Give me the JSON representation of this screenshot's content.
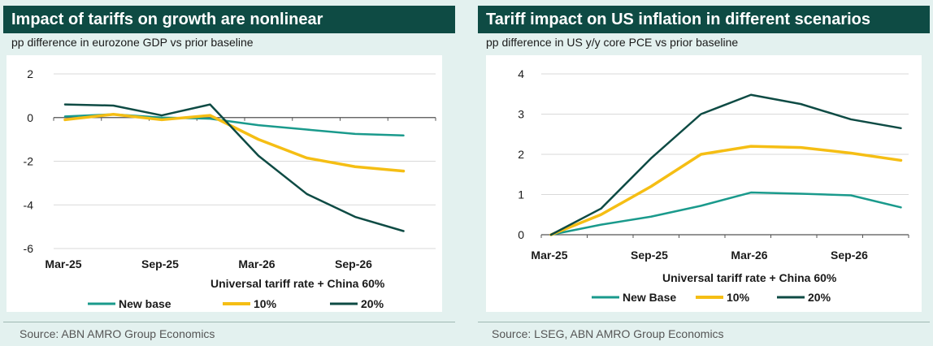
{
  "colors": {
    "header_bg": "#0e4b44",
    "page_bg": "#e3f1ef",
    "new_base": "#1a9a8c",
    "ten_pct": "#f5be14",
    "twenty_pct": "#0e4b44"
  },
  "left": {
    "title": "Impact of tariffs on growth are nonlinear",
    "subtitle": "pp difference in eurozone GDP vs prior baseline",
    "source": "Source: ABN AMRO Group Economics",
    "xlabel": "Universal tariff rate + China 60%",
    "legend": [
      "New base",
      "10%",
      "20%"
    ]
  },
  "right": {
    "title": "Tariff impact on US inflation in different scenarios",
    "subtitle": "pp difference in US y/y core PCE vs prior baseline",
    "source": "Source: LSEG, ABN AMRO Group Economics",
    "xlabel": "Universal tariff rate + China 60%",
    "legend": [
      "New Base",
      "10%",
      "20%"
    ]
  },
  "chart_data": [
    {
      "type": "line",
      "title": "Impact of tariffs on growth are nonlinear",
      "subtitle": "pp difference in eurozone GDP vs prior baseline",
      "xlabel": "Universal tariff rate + China 60%",
      "ylabel": "",
      "x": [
        "Mar-25",
        "Jun-25",
        "Sep-25",
        "Dec-25",
        "Mar-26",
        "Jun-26",
        "Sep-26",
        "Dec-26"
      ],
      "xticks": [
        "Mar-25",
        "Sep-25",
        "Mar-26",
        "Sep-26"
      ],
      "yticks": [
        2,
        0,
        -2,
        -4,
        -6
      ],
      "ylim": [
        -6,
        2
      ],
      "grid": "horizontal",
      "legend_position": "bottom",
      "series": [
        {
          "name": "New base",
          "color": "#1a9a8c",
          "values": [
            0.05,
            0.15,
            0.0,
            -0.05,
            -0.35,
            -0.55,
            -0.75,
            -0.82
          ]
        },
        {
          "name": "10%",
          "color": "#f5be14",
          "values": [
            -0.1,
            0.15,
            -0.1,
            0.1,
            -1.0,
            -1.85,
            -2.25,
            -2.45
          ]
        },
        {
          "name": "20%",
          "color": "#0e4b44",
          "values": [
            0.6,
            0.55,
            0.1,
            0.6,
            -1.75,
            -3.5,
            -4.55,
            -5.2
          ]
        }
      ]
    },
    {
      "type": "line",
      "title": "Tariff impact on US inflation in different scenarios",
      "subtitle": "pp difference in US y/y core PCE vs prior baseline",
      "xlabel": "Universal tariff rate + China 60%",
      "ylabel": "",
      "x": [
        "Mar-25",
        "Jun-25",
        "Sep-25",
        "Dec-25",
        "Mar-26",
        "Jun-26",
        "Sep-26",
        "Dec-26"
      ],
      "xticks": [
        "Mar-25",
        "Sep-25",
        "Mar-26",
        "Sep-26"
      ],
      "yticks": [
        0,
        1,
        2,
        3,
        4
      ],
      "ylim": [
        0,
        4
      ],
      "grid": "horizontal",
      "legend_position": "bottom",
      "series": [
        {
          "name": "New Base",
          "color": "#1a9a8c",
          "values": [
            0.0,
            0.25,
            0.45,
            0.72,
            1.05,
            1.02,
            0.98,
            0.68
          ]
        },
        {
          "name": "10%",
          "color": "#f5be14",
          "values": [
            0.0,
            0.5,
            1.2,
            2.0,
            2.2,
            2.17,
            2.03,
            1.85
          ]
        },
        {
          "name": "20%",
          "color": "#0e4b44",
          "values": [
            0.0,
            0.65,
            1.9,
            3.0,
            3.48,
            3.25,
            2.87,
            2.65
          ]
        }
      ]
    }
  ]
}
